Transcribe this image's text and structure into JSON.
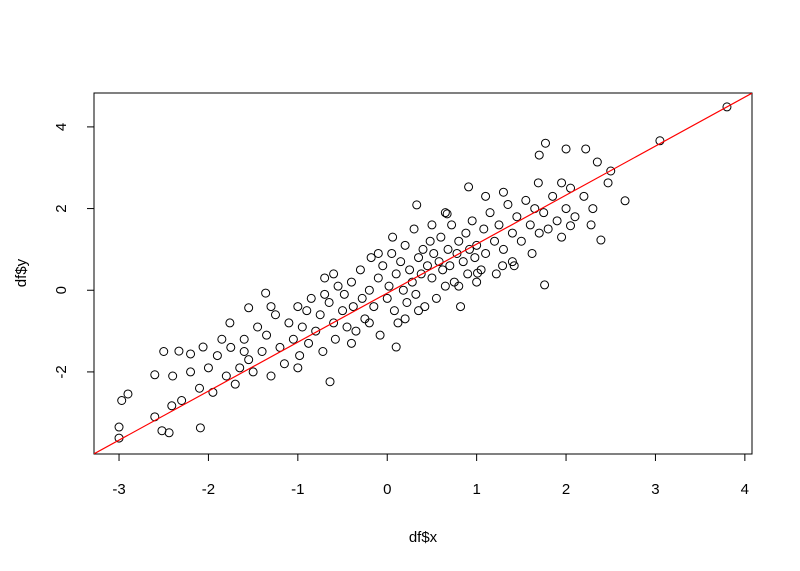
{
  "chart_data": {
    "type": "scatter",
    "xlabel": "df$x",
    "ylabel": "df$y",
    "xlim": [
      -3.28,
      4.08
    ],
    "ylim": [
      -4.01,
      4.83
    ],
    "xticks": [
      -3,
      -2,
      -1,
      0,
      1,
      2,
      3,
      4
    ],
    "yticks": [
      -2,
      0,
      2,
      4
    ],
    "color": "#000000",
    "reference_line": {
      "slope": 1.2,
      "intercept": -0.07,
      "color": "#ff0000"
    },
    "x": [
      -3.0,
      -3.0,
      -2.97,
      -2.9,
      -2.6,
      -2.6,
      -2.52,
      -2.44,
      -2.41,
      -2.33,
      -2.2,
      -2.09,
      -2.06,
      -1.76,
      -1.36,
      -1.55,
      -0.64,
      0.1,
      0.06,
      0.33,
      0.67,
      0.91,
      1.77,
      2.0,
      2.22,
      2.35,
      2.5,
      2.66,
      3.05,
      3.8,
      2.39,
      1.76,
      2.28,
      2.05,
      1.95,
      2.47,
      1.7,
      1.69,
      1.01,
      1.29,
      -1.9,
      -1.8,
      -1.75,
      -1.7,
      -1.65,
      -1.6,
      -1.55,
      -1.5,
      -1.45,
      -1.4,
      -1.35,
      -1.3,
      -1.25,
      -1.2,
      -1.15,
      -1.1,
      -1.05,
      -1.0,
      -0.98,
      -0.95,
      -0.9,
      -0.88,
      -0.85,
      -0.8,
      -0.75,
      -0.72,
      -0.7,
      -0.65,
      -0.6,
      -0.58,
      -0.55,
      -0.5,
      -0.48,
      -0.45,
      -0.4,
      -0.38,
      -0.35,
      -0.3,
      -0.28,
      -0.25,
      -0.2,
      -0.18,
      -0.15,
      -0.1,
      -0.08,
      -0.05,
      0.0,
      0.02,
      0.05,
      0.08,
      0.1,
      0.12,
      0.15,
      0.18,
      0.2,
      0.22,
      0.25,
      0.28,
      0.3,
      0.32,
      0.35,
      0.38,
      0.4,
      0.42,
      0.45,
      0.48,
      0.5,
      0.52,
      0.55,
      0.58,
      0.6,
      0.62,
      0.65,
      0.68,
      0.7,
      0.72,
      0.75,
      0.78,
      0.8,
      0.82,
      0.85,
      0.88,
      0.9,
      0.92,
      0.95,
      0.98,
      1.0,
      1.05,
      1.08,
      1.1,
      1.15,
      1.2,
      1.22,
      1.25,
      1.3,
      1.35,
      1.4,
      1.42,
      1.45,
      1.5,
      1.55,
      1.6,
      1.62,
      1.65,
      1.7,
      1.75,
      1.8,
      1.85,
      1.9,
      1.95,
      2.0,
      2.05,
      2.1,
      2.2,
      2.3,
      -2.0,
      -2.1,
      -2.2,
      -2.3,
      -2.4,
      -2.5,
      -1.95,
      -1.85,
      -1.6,
      -1.3,
      -1.0,
      -0.7,
      -0.4,
      -0.1,
      0.2,
      0.5,
      0.8,
      1.1,
      1.4,
      -0.6,
      -0.2,
      0.35,
      0.65,
      1.0,
      1.3
    ],
    "values": [
      -3.62,
      -3.35,
      -2.7,
      -2.54,
      -3.1,
      -2.07,
      -3.44,
      -3.49,
      -2.83,
      -1.49,
      -1.56,
      -3.37,
      -1.39,
      -0.8,
      -0.07,
      -0.43,
      -2.24,
      -1.39,
      1.3,
      2.09,
      1.87,
      2.53,
      3.6,
      3.46,
      3.46,
      3.14,
      2.92,
      2.19,
      3.66,
      4.49,
      1.23,
      0.13,
      1.6,
      1.58,
      2.63,
      2.63,
      3.31,
      2.63,
      0.42,
      0.6,
      -1.6,
      -2.1,
      -1.4,
      -2.3,
      -1.9,
      -1.2,
      -1.7,
      -2.0,
      -0.9,
      -1.5,
      -1.1,
      -2.1,
      -0.6,
      -1.4,
      -1.8,
      -0.8,
      -1.2,
      -0.4,
      -1.6,
      -0.9,
      -0.5,
      -1.3,
      -0.2,
      -1.0,
      -0.6,
      -1.5,
      0.3,
      -0.3,
      -0.8,
      -1.2,
      0.1,
      -0.5,
      -0.1,
      -0.9,
      0.2,
      -0.4,
      -1.0,
      0.5,
      -0.2,
      -0.7,
      0.0,
      0.8,
      -0.4,
      0.3,
      -1.1,
      0.6,
      -0.2,
      0.1,
      0.9,
      -0.5,
      0.4,
      -0.8,
      0.7,
      0.0,
      1.1,
      -0.3,
      0.5,
      0.2,
      1.5,
      -0.1,
      0.8,
      0.4,
      1.0,
      -0.4,
      0.6,
      1.2,
      0.3,
      0.9,
      -0.2,
      0.7,
      1.3,
      0.5,
      0.1,
      1.0,
      0.6,
      1.6,
      0.2,
      0.9,
      1.2,
      -0.4,
      0.7,
      1.4,
      0.4,
      1.0,
      1.7,
      0.8,
      1.1,
      0.5,
      1.5,
      0.9,
      1.9,
      1.2,
      0.4,
      1.6,
      1.0,
      2.1,
      1.4,
      0.6,
      1.8,
      1.2,
      2.2,
      1.6,
      0.9,
      2.0,
      1.4,
      1.9,
      1.5,
      2.3,
      1.7,
      1.3,
      2.0,
      2.5,
      1.8,
      2.3,
      2.0,
      -1.9,
      -2.4,
      -2.0,
      -2.7,
      -2.1,
      -1.5,
      -2.5,
      -1.2,
      -1.5,
      -0.4,
      -1.9,
      -0.1,
      -1.3,
      0.9,
      -0.7,
      1.6,
      0.1,
      2.3,
      0.7,
      0.4,
      -0.8,
      -0.5,
      1.9,
      0.2,
      2.4
    ]
  }
}
